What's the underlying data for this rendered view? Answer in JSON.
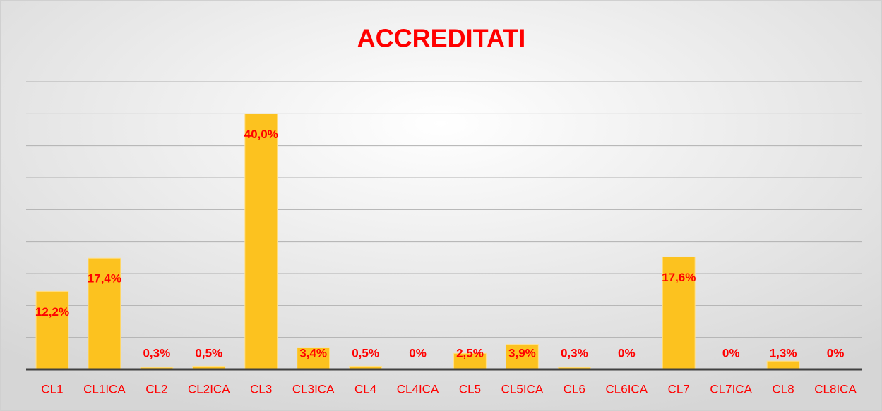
{
  "chart_data": {
    "type": "bar",
    "title": "ACCREDITATI",
    "categories": [
      "CL1",
      "CL1ICA",
      "CL2",
      "CL2ICA",
      "CL3",
      "CL3ICA",
      "CL4",
      "CL4ICA",
      "CL5",
      "CL5ICA",
      "CL6",
      "CL6ICA",
      "CL7",
      "CL7ICA",
      "CL8",
      "CL8ICA"
    ],
    "values": [
      12.2,
      17.4,
      0.3,
      0.5,
      40.0,
      3.4,
      0.5,
      0,
      2.5,
      3.9,
      0.3,
      0,
      17.6,
      0,
      1.3,
      0
    ],
    "value_labels": [
      "12,2%",
      "17,4%",
      "0,3%",
      "0,5%",
      "40,0%",
      "3,4%",
      "0,5%",
      "0%",
      "2,5%",
      "3,9%",
      "0,3%",
      "0%",
      "17,6%",
      "0%",
      "1,3%",
      "0%"
    ],
    "color": "#fcc21f",
    "ylim": [
      0,
      45
    ],
    "yticks": [
      0,
      5,
      10,
      15,
      20,
      25,
      30,
      35,
      40,
      45
    ],
    "grid": true
  }
}
